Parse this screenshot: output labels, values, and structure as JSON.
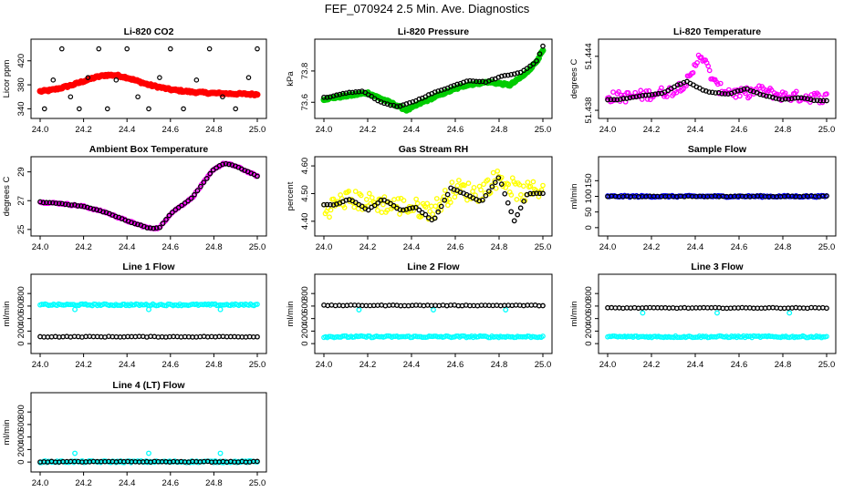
{
  "figure_title": "FEF_070924  2.5 Min. Ave. Diagnostics",
  "colors": {
    "co2": "#ff0000",
    "pressure": "#00cc00",
    "temperature": "#ff00ff",
    "ambient": "#ff00ff",
    "rh": "#ffff00",
    "sample_flow": "#0000ff",
    "line_flow": "#00ffff",
    "reference": "#000000"
  },
  "chart_data": [
    {
      "id": "co2",
      "type": "scatter",
      "title": "Li-820 CO2",
      "xlabel": "",
      "ylabel": "Licor ppm",
      "xlim": [
        24.0,
        25.0
      ],
      "ylim": [
        330,
        450
      ],
      "xticks": [
        "24.0",
        "24.2",
        "24.4",
        "24.6",
        "24.8",
        "25.0"
      ],
      "yticks": [
        {
          "v": 340,
          "t": "340"
        },
        {
          "v": 380,
          "t": "380"
        },
        {
          "v": 420,
          "t": "420"
        }
      ],
      "series": [
        {
          "name": "CO2",
          "color": "#ff0000",
          "marker": "dot",
          "x": [
            24.0,
            24.05,
            24.1,
            24.15,
            24.2,
            24.25,
            24.3,
            24.35,
            24.4,
            24.45,
            24.5,
            24.6,
            24.7,
            24.8,
            24.9,
            25.0
          ],
          "y": [
            369,
            371,
            375,
            380,
            386,
            392,
            396,
            396,
            392,
            386,
            380,
            372,
            368,
            366,
            365,
            364
          ]
        },
        {
          "name": "reference",
          "color": "#000000",
          "marker": "circle",
          "x": [
            24.02,
            24.06,
            24.1,
            24.14,
            24.18,
            24.22,
            24.27,
            24.31,
            24.35,
            24.4,
            24.45,
            24.5,
            24.55,
            24.6,
            24.66,
            24.72,
            24.78,
            24.84,
            24.9,
            24.96,
            25.0
          ],
          "y": [
            340,
            388,
            440,
            360,
            340,
            392,
            440,
            340,
            388,
            440,
            360,
            340,
            392,
            440,
            340,
            388,
            440,
            360,
            340,
            392,
            440
          ]
        }
      ]
    },
    {
      "id": "pressure",
      "type": "scatter",
      "title": "Li-820 Pressure",
      "xlabel": "",
      "ylabel": "kPa",
      "xlim": [
        24.0,
        25.0
      ],
      "ylim": [
        73.52,
        73.98
      ],
      "xticks": [
        "24.0",
        "24.2",
        "24.4",
        "24.6",
        "24.8",
        "25.0"
      ],
      "yticks": [
        {
          "v": 73.6,
          "t": "73.6"
        },
        {
          "v": 73.8,
          "t": "73.8"
        }
      ],
      "series": [
        {
          "name": "pressure",
          "color": "#00cc00",
          "marker": "dot",
          "x": [
            24.0,
            24.1,
            24.2,
            24.3,
            24.38,
            24.45,
            24.55,
            24.65,
            24.75,
            24.85,
            24.92,
            24.97,
            25.0
          ],
          "y": [
            73.62,
            73.64,
            73.66,
            73.6,
            73.55,
            73.6,
            73.66,
            73.71,
            73.73,
            73.71,
            73.78,
            73.86,
            73.93
          ]
        },
        {
          "name": "reference",
          "color": "#000000",
          "marker": "circle",
          "x": [
            24.02,
            24.1,
            24.18,
            24.26,
            24.34,
            24.42,
            24.5,
            24.58,
            24.66,
            24.74,
            24.82,
            24.9,
            24.97,
            25.0
          ],
          "y": [
            73.63,
            73.66,
            73.67,
            73.6,
            73.57,
            73.61,
            73.66,
            73.7,
            73.74,
            73.73,
            73.77,
            73.79,
            73.86,
            73.96
          ]
        }
      ]
    },
    {
      "id": "temperature",
      "type": "scatter",
      "title": "Li-820 Temperature",
      "xlabel": "",
      "ylabel": "degrees C",
      "xlim": [
        24.0,
        25.0
      ],
      "ylim": [
        51.4375,
        51.4455
      ],
      "xticks": [
        "24.0",
        "24.2",
        "24.4",
        "24.6",
        "24.8",
        "25.0"
      ],
      "yticks": [
        {
          "v": 51.438,
          "t": "51.438"
        },
        {
          "v": 51.444,
          "t": "51.444"
        }
      ],
      "series": [
        {
          "name": "temperature",
          "color": "#ff00ff",
          "marker": "circle",
          "x": [
            24.0,
            24.1,
            24.2,
            24.3,
            24.38,
            24.42,
            24.5,
            24.6,
            24.7,
            24.8,
            24.9,
            25.0
          ],
          "y": [
            51.4395,
            51.4395,
            51.4398,
            51.4402,
            51.4415,
            51.4445,
            51.4405,
            51.4398,
            51.4402,
            51.4396,
            51.4395,
            51.4394
          ],
          "spread": 0.0012
        },
        {
          "name": "reference",
          "color": "#000000",
          "marker": "circle",
          "x": [
            24.05,
            24.15,
            24.25,
            24.32,
            24.36,
            24.45,
            24.55,
            24.63,
            24.72,
            24.8,
            24.88,
            24.95
          ],
          "y": [
            51.4392,
            51.4396,
            51.4399,
            51.4408,
            51.4412,
            51.4401,
            51.4398,
            51.4404,
            51.4396,
            51.4392,
            51.4394,
            51.4391
          ]
        }
      ]
    },
    {
      "id": "ambient",
      "type": "scatter",
      "title": "Ambient Box Temperature",
      "xlabel": "",
      "ylabel": "degrees C",
      "xlim": [
        24.0,
        25.0
      ],
      "ylim": [
        24.8,
        29.8
      ],
      "xticks": [
        "24.0",
        "24.2",
        "24.4",
        "24.6",
        "24.8",
        "25.0"
      ],
      "yticks": [
        {
          "v": 25,
          "t": "25"
        },
        {
          "v": 27,
          "t": "27"
        },
        {
          "v": 29,
          "t": "29"
        }
      ],
      "series": [
        {
          "name": "ambient",
          "color": "#ff00ff",
          "marker": "circle",
          "x": [
            24.0,
            24.1,
            24.2,
            24.3,
            24.4,
            24.5,
            24.55,
            24.6,
            24.7,
            24.8,
            24.85,
            24.9,
            25.0
          ],
          "y": [
            26.9,
            26.8,
            26.6,
            26.2,
            25.6,
            25.1,
            25.1,
            26.1,
            27.2,
            29.2,
            29.6,
            29.4,
            28.7
          ]
        },
        {
          "name": "reference",
          "color": "#000000",
          "marker": "circle",
          "x": [
            24.0,
            24.1,
            24.2,
            24.3,
            24.4,
            24.5,
            24.55,
            24.6,
            24.7,
            24.8,
            24.85,
            24.9,
            25.0
          ],
          "y": [
            26.9,
            26.8,
            26.6,
            26.2,
            25.6,
            25.1,
            25.1,
            26.1,
            27.2,
            29.2,
            29.6,
            29.4,
            28.7
          ]
        }
      ]
    },
    {
      "id": "rh",
      "type": "scatter",
      "title": "Gas Stream RH",
      "xlabel": "",
      "ylabel": "percent",
      "xlim": [
        24.0,
        25.0
      ],
      "ylim": [
        4.36,
        4.62
      ],
      "xticks": [
        "24.0",
        "24.2",
        "24.4",
        "24.6",
        "24.8",
        "25.0"
      ],
      "yticks": [
        {
          "v": 4.4,
          "t": "4.40"
        },
        {
          "v": 4.5,
          "t": "4.50"
        },
        {
          "v": 4.6,
          "t": "4.60"
        }
      ],
      "series": [
        {
          "name": "rh",
          "color": "#ffff00",
          "marker": "circle",
          "x": [
            24.0,
            24.1,
            24.2,
            24.3,
            24.4,
            24.5,
            24.6,
            24.7,
            24.8,
            24.9,
            25.0
          ],
          "y": [
            4.44,
            4.48,
            4.47,
            4.46,
            4.45,
            4.44,
            4.52,
            4.5,
            4.56,
            4.5,
            4.52
          ],
          "spread": 0.07
        },
        {
          "name": "reference",
          "color": "#000000",
          "marker": "circle",
          "x": [
            24.05,
            24.12,
            24.2,
            24.27,
            24.35,
            24.42,
            24.5,
            24.58,
            24.64,
            24.72,
            24.8,
            24.87,
            24.93,
            24.98
          ],
          "y": [
            4.46,
            4.48,
            4.44,
            4.48,
            4.44,
            4.45,
            4.4,
            4.52,
            4.5,
            4.47,
            4.56,
            4.4,
            4.5,
            4.5
          ]
        }
      ]
    },
    {
      "id": "sample",
      "type": "scatter",
      "title": "Sample Flow",
      "xlabel": "",
      "ylabel": "ml/min",
      "xlim": [
        24.0,
        25.0
      ],
      "ylim": [
        -15,
        215
      ],
      "xticks": [
        "24.0",
        "24.2",
        "24.4",
        "24.6",
        "24.8",
        "25.0"
      ],
      "yticks": [
        {
          "v": 0,
          "t": "0"
        },
        {
          "v": 50,
          "t": "50"
        },
        {
          "v": 100,
          "t": "100"
        },
        {
          "v": 150,
          "t": "150"
        }
      ],
      "series": [
        {
          "name": "sample_flow",
          "color": "#0000ff",
          "marker": "circle",
          "x": [
            24.0,
            25.0
          ],
          "y": [
            100,
            100
          ]
        },
        {
          "name": "reference",
          "color": "#000000",
          "marker": "circle",
          "x": [
            24.0,
            25.0
          ],
          "y": [
            100,
            100
          ]
        }
      ]
    },
    {
      "id": "line1",
      "type": "scatter",
      "title": "Line 1 Flow",
      "xlabel": "",
      "ylabel": "ml/min",
      "xlim": [
        24.0,
        25.0
      ],
      "ylim": [
        -100,
        1050
      ],
      "xticks": [
        "24.0",
        "24.2",
        "24.4",
        "24.6",
        "24.8",
        "25.0"
      ],
      "yticks": [
        {
          "v": 0,
          "t": "0"
        },
        {
          "v": 200,
          "t": "200"
        },
        {
          "v": 400,
          "t": "400"
        },
        {
          "v": 600,
          "t": "600"
        },
        {
          "v": 800,
          "t": "800"
        }
      ],
      "series": [
        {
          "name": "line_flow",
          "color": "#00ffff",
          "marker": "circle",
          "x": [
            24.0,
            25.0
          ],
          "y": [
            620,
            620
          ],
          "outliers_x": [
            24.16,
            24.5,
            24.83
          ],
          "outliers_y": [
            545,
            545,
            545
          ]
        },
        {
          "name": "reference",
          "color": "#000000",
          "marker": "circle",
          "x": [
            24.0,
            25.0
          ],
          "y": [
            110,
            110
          ]
        }
      ]
    },
    {
      "id": "line2",
      "type": "scatter",
      "title": "Line 2 Flow",
      "xlabel": "",
      "ylabel": "ml/min",
      "xlim": [
        24.0,
        25.0
      ],
      "ylim": [
        -100,
        1050
      ],
      "xticks": [
        "24.0",
        "24.2",
        "24.4",
        "24.6",
        "24.8",
        "25.0"
      ],
      "yticks": [
        {
          "v": 0,
          "t": "0"
        },
        {
          "v": 200,
          "t": "200"
        },
        {
          "v": 400,
          "t": "400"
        },
        {
          "v": 600,
          "t": "600"
        },
        {
          "v": 800,
          "t": "800"
        }
      ],
      "series": [
        {
          "name": "line_flow",
          "color": "#00ffff",
          "marker": "circle",
          "x": [
            24.0,
            25.0
          ],
          "y": [
            110,
            110
          ],
          "outliers_x": [
            24.16,
            24.5,
            24.83
          ],
          "outliers_y": [
            540,
            540,
            540
          ]
        },
        {
          "name": "reference",
          "color": "#000000",
          "marker": "circle",
          "x": [
            24.0,
            25.0
          ],
          "y": [
            610,
            610
          ]
        }
      ]
    },
    {
      "id": "line3",
      "type": "scatter",
      "title": "Line 3 Flow",
      "xlabel": "",
      "ylabel": "ml/min",
      "xlim": [
        24.0,
        25.0
      ],
      "ylim": [
        -100,
        1050
      ],
      "xticks": [
        "24.0",
        "24.2",
        "24.4",
        "24.6",
        "24.8",
        "25.0"
      ],
      "yticks": [
        {
          "v": 0,
          "t": "0"
        },
        {
          "v": 200,
          "t": "200"
        },
        {
          "v": 400,
          "t": "400"
        },
        {
          "v": 600,
          "t": "600"
        },
        {
          "v": 800,
          "t": "800"
        }
      ],
      "series": [
        {
          "name": "line_flow",
          "color": "#00ffff",
          "marker": "circle",
          "x": [
            24.0,
            25.0
          ],
          "y": [
            110,
            110
          ],
          "outliers_x": [
            24.16,
            24.5,
            24.83
          ],
          "outliers_y": [
            490,
            490,
            490
          ]
        },
        {
          "name": "reference",
          "color": "#000000",
          "marker": "circle",
          "x": [
            24.0,
            25.0
          ],
          "y": [
            570,
            570
          ]
        }
      ]
    },
    {
      "id": "line4",
      "type": "scatter",
      "title": "Line 4 (LT) Flow",
      "xlabel": "",
      "ylabel": "ml/min",
      "xlim": [
        24.0,
        25.0
      ],
      "ylim": [
        -100,
        1050
      ],
      "xticks": [
        "24.0",
        "24.2",
        "24.4",
        "24.6",
        "24.8",
        "25.0"
      ],
      "yticks": [
        {
          "v": 0,
          "t": "0"
        },
        {
          "v": 200,
          "t": "200"
        },
        {
          "v": 400,
          "t": "400"
        },
        {
          "v": 600,
          "t": "600"
        },
        {
          "v": 800,
          "t": "800"
        }
      ],
      "series": [
        {
          "name": "line_flow",
          "color": "#00ffff",
          "marker": "circle",
          "x": [
            24.0,
            25.0
          ],
          "y": [
            5,
            5
          ],
          "outliers_x": [
            24.16,
            24.5,
            24.83
          ],
          "outliers_y": [
            140,
            140,
            140
          ]
        },
        {
          "name": "reference",
          "color": "#000000",
          "marker": "circle",
          "x": [
            24.0,
            25.0
          ],
          "y": [
            5,
            5
          ]
        }
      ]
    }
  ]
}
